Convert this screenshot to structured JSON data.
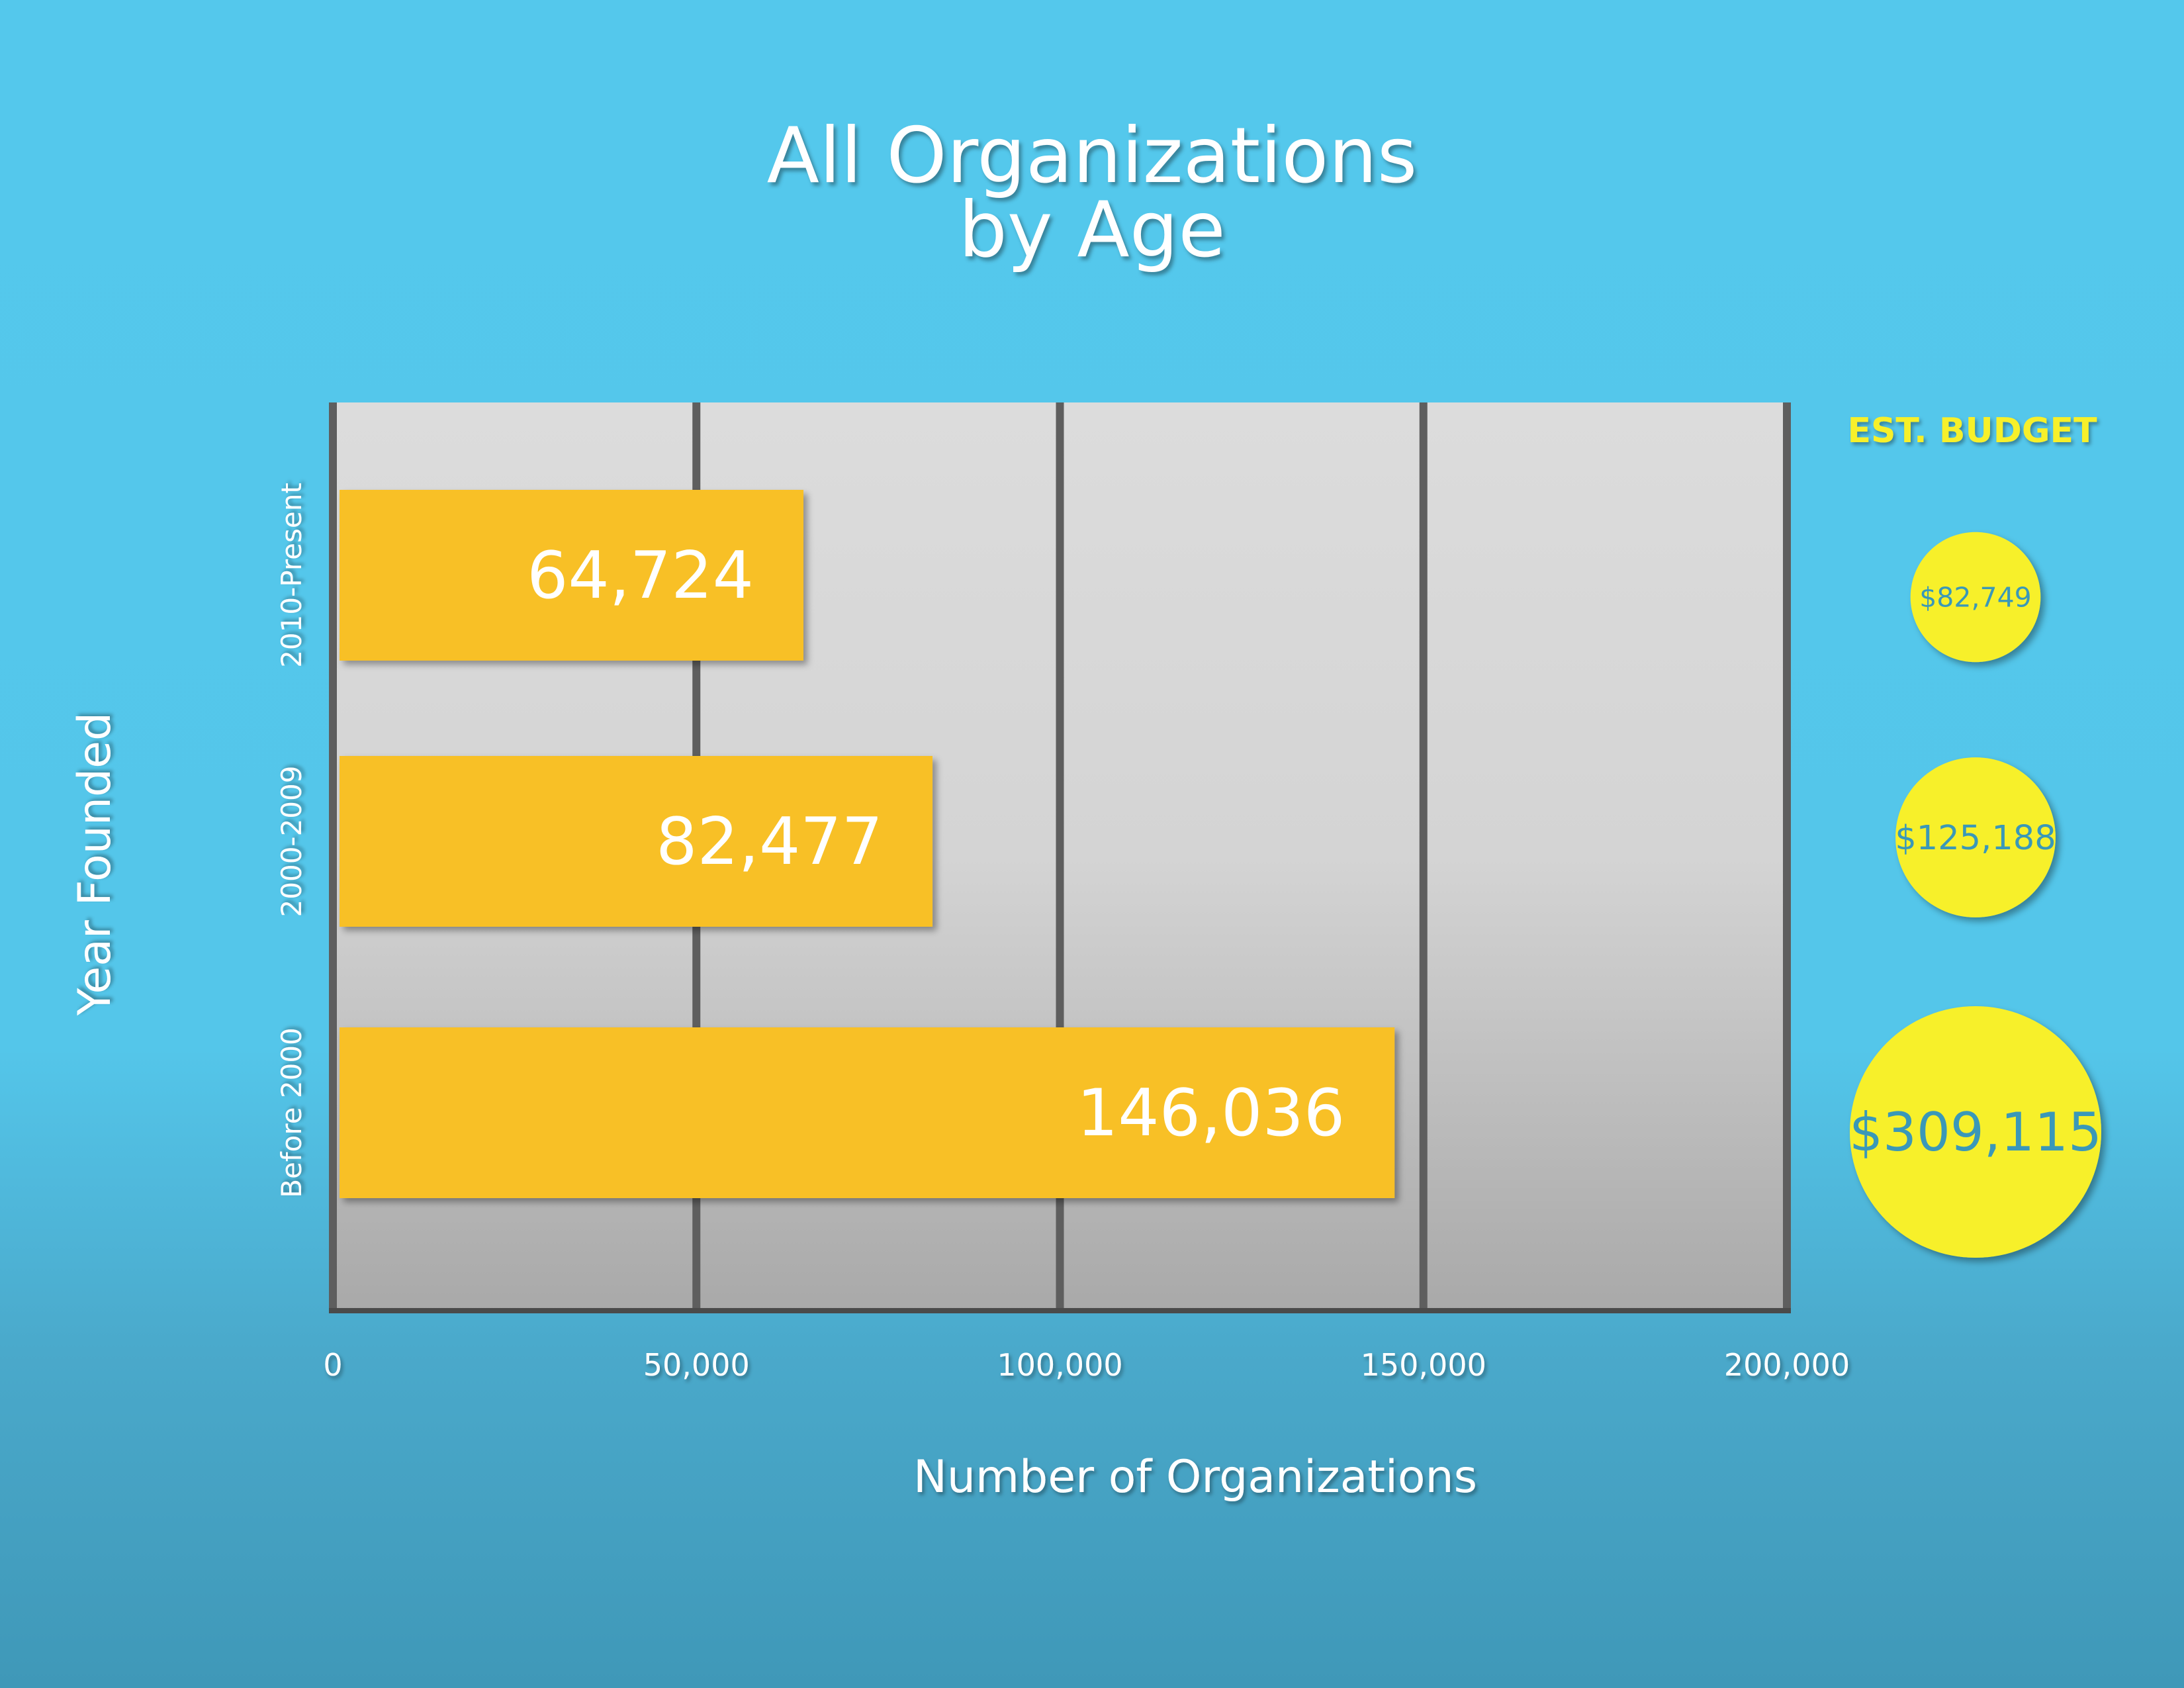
{
  "chart_data": {
    "type": "bar",
    "orientation": "horizontal",
    "title": [
      "All Organizations",
      "by Age"
    ],
    "xlabel": "Number of Organizations",
    "ylabel": "Year Founded",
    "categories": [
      "2010-Present",
      "2000-2009",
      "Before 2000"
    ],
    "values": [
      64724,
      82477,
      146036
    ],
    "data_labels": [
      "64,724",
      "82,477",
      "146,036"
    ],
    "xlim": [
      0,
      200000
    ],
    "xticks": [
      0,
      50000,
      100000,
      150000,
      200000
    ],
    "xtick_labels": [
      "0",
      "50,000",
      "100,000",
      "150,000",
      "200,000"
    ],
    "grid": true,
    "colors": {
      "bar": "#f8c025",
      "plot_bg_top": "#dcdcdc",
      "plot_bg_bottom": "#a9a9a9",
      "grid": "#5e5e5e",
      "bubble": "#f7f02c",
      "bubble_text": "#3a98b8"
    },
    "budget": {
      "title": "EST. BUDGET",
      "values": [
        82749,
        125188,
        309115
      ],
      "labels": [
        "$82,749",
        "$125,188",
        "$309,115"
      ]
    }
  }
}
